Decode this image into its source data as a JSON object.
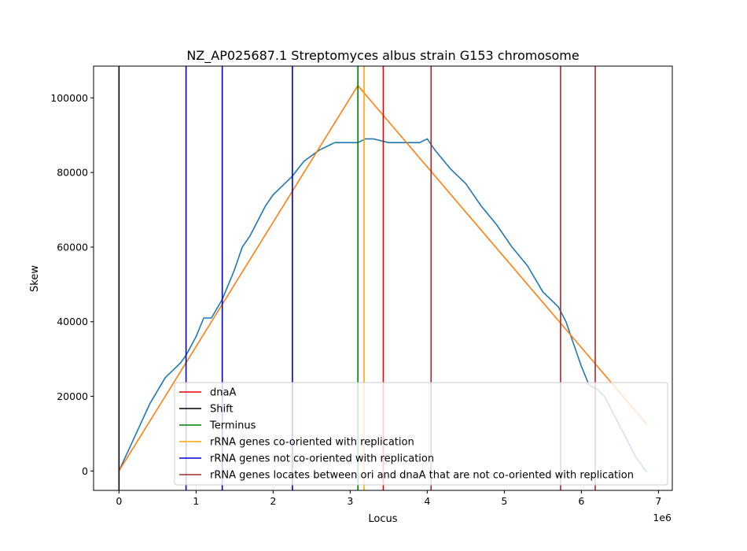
{
  "chart_data": {
    "type": "line",
    "title": "NZ_AP025687.1 Streptomyces albus strain G153 chromosome",
    "xlabel": "Locus",
    "ylabel": "Skew",
    "x_offset_label": "1e6",
    "xlim": [
      -330000,
      7180000
    ],
    "ylim": [
      -5200,
      108500
    ],
    "x_ticks": [
      0,
      1000000,
      2000000,
      3000000,
      4000000,
      5000000,
      6000000,
      7000000
    ],
    "x_tick_labels": [
      "0",
      "1",
      "2",
      "3",
      "4",
      "5",
      "6",
      "7"
    ],
    "y_ticks": [
      0,
      20000,
      40000,
      60000,
      80000,
      100000
    ],
    "y_tick_labels": [
      "0",
      "20000",
      "40000",
      "60000",
      "80000",
      "100000"
    ],
    "grid": false,
    "legend_position": "lower-right",
    "series": [
      {
        "name": "",
        "color": "#1f77b4",
        "x": [
          0,
          200000,
          400000,
          600000,
          800000,
          870000,
          1000000,
          1100000,
          1200000,
          1340000,
          1500000,
          1600000,
          1700000,
          1800000,
          1900000,
          2000000,
          2150000,
          2250000,
          2400000,
          2600000,
          2700000,
          2800000,
          3000000,
          3100000,
          3200000,
          3300000,
          3500000,
          3700000,
          3900000,
          4000000,
          4100000,
          4300000,
          4500000,
          4700000,
          4900000,
          5100000,
          5300000,
          5500000,
          5700000,
          5800000,
          5900000,
          6000000,
          6100000,
          6200000,
          6300000,
          6400000,
          6500000,
          6600000,
          6700000,
          6800000,
          6850000
        ],
        "y": [
          0,
          9000,
          18000,
          25000,
          29000,
          31000,
          36000,
          41000,
          41000,
          46000,
          54000,
          60000,
          63000,
          67000,
          71000,
          74000,
          77000,
          79000,
          83000,
          86000,
          87000,
          88000,
          88000,
          88000,
          89000,
          89000,
          88000,
          88000,
          88000,
          89000,
          86000,
          81000,
          77000,
          71000,
          66000,
          60000,
          55000,
          48000,
          44000,
          40000,
          34000,
          28000,
          23000,
          22000,
          20000,
          16000,
          12000,
          8000,
          4000,
          1000,
          -300
        ]
      },
      {
        "name": "",
        "color": "#ff7f0e",
        "x": [
          0,
          3100000,
          6850000
        ],
        "y": [
          0,
          103300,
          12500
        ]
      }
    ],
    "vertical_lines": [
      {
        "label": "dnaA",
        "color": "#e60000",
        "x": [
          3430000
        ]
      },
      {
        "label": "Shift",
        "color": "#000000",
        "x": [
          0
        ]
      },
      {
        "label": "Terminus",
        "color": "#008000",
        "x": [
          3100000
        ]
      },
      {
        "label": "rRNA genes co-oriented with replication",
        "color": "#ffa500",
        "x": [
          3180000
        ]
      },
      {
        "label": "rRNA genes not co-oriented with replication",
        "color": "#0000cd",
        "x": [
          870000,
          1340000,
          2250000
        ]
      },
      {
        "label": "rRNA genes locates between ori and dnaA that are not co-oriented with replication",
        "color": "#a52a2a",
        "x": [
          4050000,
          5730000,
          6180000
        ]
      }
    ]
  }
}
